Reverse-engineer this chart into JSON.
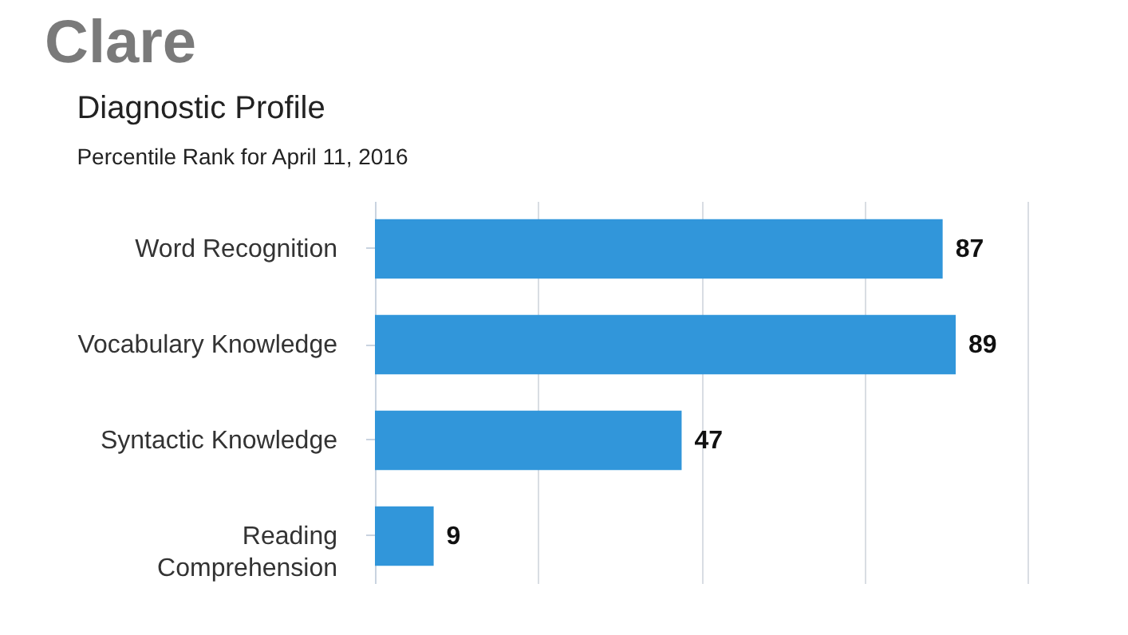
{
  "chart_data": {
    "type": "bar",
    "orientation": "horizontal",
    "title": "Clare",
    "subtitle": "Diagnostic Profile",
    "annotations": [
      "Percentile Rank for April 11, 2016"
    ],
    "categories": [
      "Word Recognition",
      "Vocabulary Knowledge",
      "Syntactic Knowledge",
      "Reading Comprehension"
    ],
    "values": [
      87,
      89,
      47,
      9
    ],
    "color": "#3196da",
    "xlim": [
      0,
      100
    ],
    "xticks": [
      {
        "value": 0,
        "label": null
      },
      {
        "value": 25,
        "label": null
      },
      {
        "value": 50,
        "label": null
      },
      {
        "value": 75,
        "label": null
      },
      {
        "value": 100,
        "label": null
      }
    ],
    "tick_labels": "y",
    "grid": "x",
    "data_labels": true
  }
}
